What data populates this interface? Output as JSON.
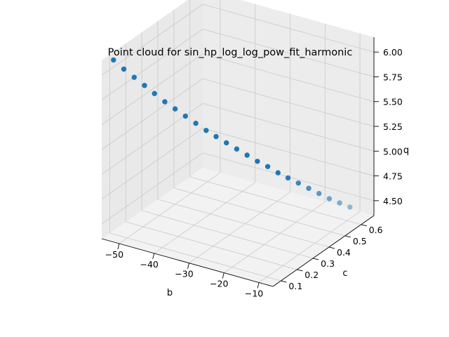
{
  "chart_data": {
    "type": "scatter",
    "projection": "3d",
    "title": "Point cloud for sin_hp_log_log_pow_fit_harmonic",
    "xlabel": "b",
    "ylabel": "c",
    "zlabel": "q",
    "xticks": [
      "−50",
      "−40",
      "−30",
      "−20",
      "−10"
    ],
    "yticks": [
      "0.1",
      "0.2",
      "0.3",
      "0.4",
      "0.5",
      "0.6"
    ],
    "zticks": [
      "4.50",
      "4.75",
      "5.00",
      "5.25",
      "5.50",
      "5.75",
      "6.00"
    ],
    "xlim": [
      -55,
      -6
    ],
    "ylim": [
      0.05,
      0.68
    ],
    "zlim": [
      4.35,
      6.15
    ],
    "grid": true,
    "marker_color": "#1f77b4",
    "series": [
      {
        "x": [
          -53.0,
          -51.1,
          -49.2,
          -47.3,
          -45.5,
          -43.6,
          -41.7,
          -39.8,
          -37.9,
          -36.0,
          -34.2,
          -32.3,
          -30.4,
          -28.5,
          -26.6,
          -24.7,
          -22.8,
          -21.0,
          -19.1,
          -17.2,
          -15.3,
          -13.4,
          -11.5,
          -9.6
        ],
        "y": [
          0.08,
          0.103,
          0.126,
          0.149,
          0.172,
          0.195,
          0.218,
          0.241,
          0.264,
          0.287,
          0.31,
          0.333,
          0.356,
          0.379,
          0.402,
          0.425,
          0.448,
          0.471,
          0.494,
          0.517,
          0.54,
          0.563,
          0.586,
          0.609
        ],
        "z": [
          6.14,
          6.04,
          5.95,
          5.86,
          5.77,
          5.68,
          5.6,
          5.52,
          5.44,
          5.36,
          5.29,
          5.22,
          5.15,
          5.08,
          5.01,
          4.95,
          4.88,
          4.82,
          4.76,
          4.7,
          4.64,
          4.58,
          4.53,
          4.48
        ]
      }
    ]
  }
}
